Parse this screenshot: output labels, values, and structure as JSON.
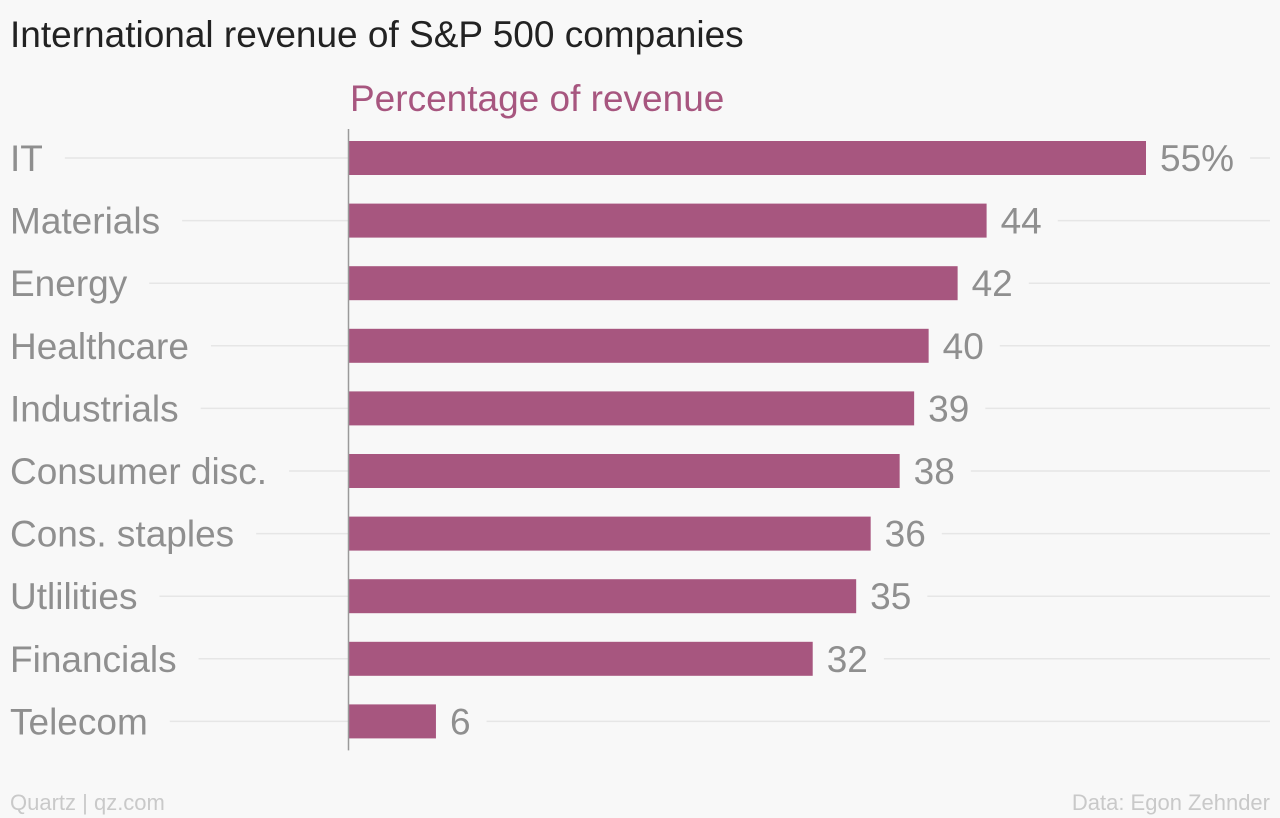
{
  "header": {
    "title": "International revenue of S&P 500 companies",
    "subtitle": "Percentage of revenue"
  },
  "footer": {
    "source_left": "Quartz | qz.com",
    "source_right": "Data: Egon Zehnder"
  },
  "colors": {
    "bar": "#a7567f",
    "label": "#8f8f8f",
    "gridline": "#e6e6e6",
    "axis": "#9a9a9a"
  },
  "chart_data": {
    "type": "bar",
    "orientation": "horizontal",
    "title": "International revenue of S&P 500 companies",
    "subtitle": "Percentage of revenue",
    "categories": [
      "IT",
      "Materials",
      "Energy",
      "Healthcare",
      "Industrials",
      "Consumer disc.",
      "Cons. staples",
      "Utlilities",
      "Financials",
      "Telecom"
    ],
    "values": [
      55,
      44,
      42,
      40,
      39,
      38,
      36,
      35,
      32,
      6
    ],
    "value_labels": [
      "55%",
      "44",
      "42",
      "40",
      "39",
      "38",
      "36",
      "35",
      "32",
      "6"
    ],
    "unit": "%",
    "xlim": [
      0,
      55
    ],
    "grid": true,
    "legend": "none"
  }
}
